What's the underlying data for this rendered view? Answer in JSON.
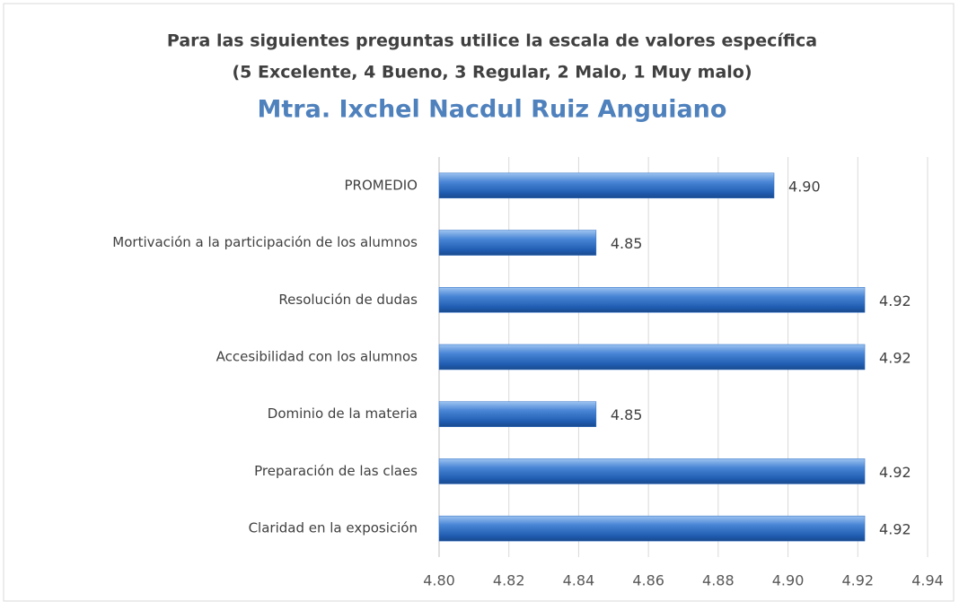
{
  "chart_data": {
    "type": "hbar",
    "title": [
      "Para las siguientes preguntas utilice la escala de valores específica",
      "(5 Excelente, 4 Bueno, 3 Regular, 2 Malo, 1 Muy malo)"
    ],
    "subtitle": "Mtra. Ixchel Nacdul Ruiz Anguiano",
    "categories": [
      "PROMEDIO",
      "Mortivación a la participación de los alumnos",
      "Resolución de dudas",
      "Accesibilidad con los alumnos",
      "Dominio de la materia",
      "Preparación de las claes",
      "Claridad en la exposición"
    ],
    "values": [
      4.896,
      4.845,
      4.922,
      4.922,
      4.845,
      4.922,
      4.922
    ],
    "value_labels": [
      "4.90",
      "4.85",
      "4.92",
      "4.92",
      "4.85",
      "4.92",
      "4.92"
    ],
    "color": "#2e6cc4",
    "xlim": [
      4.8,
      4.94
    ],
    "xticks": [
      {
        "value": 4.8,
        "label": "4.80"
      },
      {
        "value": 4.82,
        "label": "4.82"
      },
      {
        "value": 4.84,
        "label": "4.84"
      },
      {
        "value": 4.86,
        "label": "4.86"
      },
      {
        "value": 4.88,
        "label": "4.88"
      },
      {
        "value": 4.9,
        "label": "4.90"
      },
      {
        "value": 4.92,
        "label": "4.92"
      },
      {
        "value": 4.94,
        "label": "4.94"
      }
    ],
    "grid": true
  }
}
